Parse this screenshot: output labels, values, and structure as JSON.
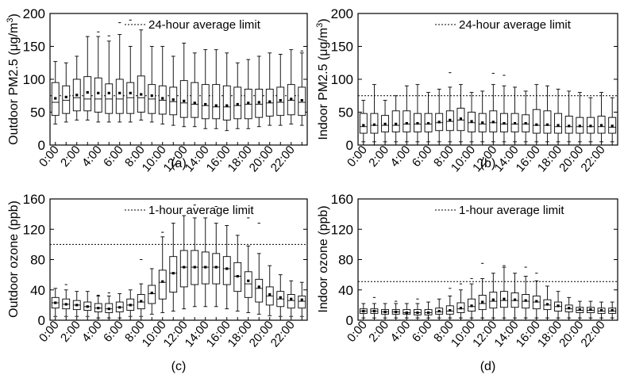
{
  "chart_data": [
    {
      "id": "a",
      "type": "box",
      "caption": "(a)",
      "ylabel": "Outdoor PM2.5 (μg/m³)",
      "ylabel_parts": [
        "Outdoor PM2.5 (μg/m",
        "3",
        ")"
      ],
      "ylim": [
        0,
        200
      ],
      "yticks": [
        0,
        50,
        100,
        150,
        200
      ],
      "limit": 75,
      "limit_label": "24-hour average limit",
      "xtick_labels": [
        "0:00",
        "2:00",
        "4:00",
        "6:00",
        "8:00",
        "10:00",
        "12:00",
        "14:00",
        "16:00",
        "18:00",
        "20:00",
        "22:00"
      ],
      "hours": [
        0,
        1,
        2,
        3,
        4,
        5,
        6,
        7,
        8,
        9,
        10,
        11,
        12,
        13,
        14,
        15,
        16,
        17,
        18,
        19,
        20,
        21,
        22,
        23
      ],
      "q1": [
        45,
        48,
        52,
        52,
        50,
        48,
        48,
        48,
        50,
        48,
        47,
        46,
        42,
        42,
        40,
        40,
        38,
        40,
        40,
        42,
        44,
        45,
        46,
        45
      ],
      "median": [
        65,
        68,
        72,
        70,
        70,
        70,
        70,
        72,
        72,
        70,
        68,
        66,
        64,
        62,
        60,
        58,
        58,
        60,
        62,
        62,
        64,
        65,
        68,
        65
      ],
      "q3": [
        95,
        90,
        100,
        104,
        102,
        93,
        100,
        95,
        105,
        92,
        90,
        88,
        98,
        95,
        92,
        92,
        90,
        88,
        85,
        85,
        85,
        88,
        92,
        88
      ],
      "wlo": [
        32,
        35,
        38,
        38,
        35,
        35,
        35,
        35,
        38,
        35,
        32,
        30,
        28,
        28,
        25,
        25,
        22,
        25,
        25,
        28,
        30,
        30,
        32,
        30
      ],
      "whi": [
        127,
        125,
        135,
        165,
        165,
        158,
        168,
        150,
        175,
        150,
        150,
        135,
        155,
        140,
        145,
        145,
        140,
        125,
        130,
        135,
        140,
        138,
        145,
        140
      ],
      "mean": [
        71,
        73,
        76,
        80,
        79,
        79,
        79,
        79,
        77,
        75,
        71,
        69,
        67,
        64,
        62,
        60,
        60,
        62,
        64,
        65,
        66,
        68,
        70,
        68
      ],
      "outliers": [
        [
          4,
          172
        ],
        [
          5,
          166
        ],
        [
          6,
          186
        ],
        [
          7,
          190
        ],
        [
          23,
          143
        ]
      ]
    },
    {
      "id": "b",
      "type": "box",
      "caption": "(b)",
      "ylabel": "Indoor PM2.5 (μg/m³)",
      "ylabel_parts": [
        "Indoor PM2.5 (μg/m",
        "3",
        ")"
      ],
      "ylim": [
        0,
        200
      ],
      "yticks": [
        0,
        50,
        100,
        150,
        200
      ],
      "limit": 75,
      "limit_label": "24-hour average limit",
      "xtick_labels": [
        "0:00",
        "2:00",
        "4:00",
        "6:00",
        "8:00",
        "10:00",
        "12:00",
        "14:00",
        "16:00",
        "18:00",
        "20:00",
        "22:00"
      ],
      "hours": [
        0,
        1,
        2,
        3,
        4,
        5,
        6,
        7,
        8,
        9,
        10,
        11,
        12,
        13,
        14,
        15,
        16,
        17,
        18,
        19,
        20,
        21,
        22,
        23
      ],
      "q1": [
        18,
        18,
        20,
        20,
        20,
        20,
        20,
        22,
        22,
        22,
        20,
        20,
        20,
        20,
        20,
        20,
        18,
        18,
        18,
        18,
        18,
        18,
        18,
        18
      ],
      "median": [
        28,
        30,
        30,
        30,
        32,
        32,
        32,
        34,
        36,
        38,
        34,
        32,
        34,
        32,
        32,
        32,
        30,
        30,
        28,
        28,
        28,
        28,
        28,
        27
      ],
      "q3": [
        48,
        48,
        45,
        52,
        52,
        48,
        48,
        48,
        52,
        56,
        50,
        48,
        52,
        48,
        48,
        46,
        54,
        52,
        48,
        44,
        42,
        42,
        44,
        42
      ],
      "wlo": [
        5,
        5,
        5,
        5,
        5,
        5,
        5,
        5,
        5,
        5,
        5,
        5,
        5,
        5,
        5,
        5,
        5,
        5,
        5,
        5,
        5,
        5,
        5,
        5
      ],
      "whi": [
        68,
        92,
        68,
        75,
        90,
        92,
        80,
        85,
        88,
        92,
        80,
        82,
        92,
        90,
        88,
        82,
        92,
        90,
        85,
        82,
        80,
        72,
        80,
        72
      ],
      "mean": [
        30,
        31,
        32,
        32,
        33,
        33,
        33,
        35,
        38,
        40,
        36,
        34,
        35,
        33,
        33,
        33,
        31,
        31,
        30,
        29,
        29,
        29,
        30,
        29
      ],
      "outliers": [
        [
          8,
          110
        ],
        [
          12,
          109
        ],
        [
          13,
          106
        ]
      ]
    },
    {
      "id": "c",
      "type": "box",
      "caption": "(c)",
      "ylabel": "Outdoor ozone (ppb)",
      "ylabel_parts": [
        "Outdoor ozone (ppb)"
      ],
      "ylim": [
        0,
        160
      ],
      "yticks": [
        0,
        40,
        80,
        120,
        160
      ],
      "limit": 100,
      "limit_label": "1-hour average limit",
      "xtick_labels": [
        "0:00",
        "2:00",
        "4:00",
        "6:00",
        "8:00",
        "10:00",
        "12:00",
        "14:00",
        "16:00",
        "18:00",
        "20:00",
        "22:00"
      ],
      "hours": [
        0,
        1,
        2,
        3,
        4,
        5,
        6,
        7,
        8,
        9,
        10,
        11,
        12,
        13,
        14,
        15,
        16,
        17,
        18,
        19,
        20,
        21,
        22,
        23
      ],
      "q1": [
        16,
        15,
        14,
        13,
        11,
        10,
        11,
        13,
        15,
        22,
        28,
        37,
        44,
        47,
        48,
        48,
        47,
        38,
        30,
        24,
        20,
        18,
        16,
        16
      ],
      "median": [
        23,
        21,
        20,
        18,
        16,
        15,
        17,
        20,
        24,
        35,
        50,
        62,
        70,
        70,
        70,
        70,
        68,
        58,
        48,
        42,
        32,
        28,
        26,
        25
      ],
      "q3": [
        30,
        28,
        26,
        24,
        22,
        22,
        24,
        28,
        34,
        46,
        66,
        84,
        92,
        92,
        90,
        88,
        84,
        76,
        64,
        54,
        44,
        38,
        34,
        32
      ],
      "wlo": [
        5,
        5,
        5,
        5,
        3,
        3,
        3,
        5,
        5,
        8,
        10,
        12,
        15,
        18,
        18,
        18,
        15,
        12,
        10,
        8,
        6,
        5,
        5,
        5
      ],
      "whi": [
        42,
        40,
        38,
        38,
        32,
        32,
        35,
        40,
        48,
        68,
        110,
        128,
        138,
        135,
        135,
        128,
        125,
        112,
        98,
        88,
        72,
        60,
        52,
        50
      ],
      "mean": [
        23,
        21,
        20,
        18,
        16,
        15,
        17,
        20,
        25,
        36,
        51,
        62,
        70,
        70,
        70,
        70,
        68,
        58,
        52,
        44,
        34,
        30,
        28,
        27
      ],
      "outliers": [
        [
          1,
          47
        ],
        [
          4,
          33
        ],
        [
          5,
          36
        ],
        [
          8,
          80
        ],
        [
          10,
          116
        ],
        [
          13,
          152
        ],
        [
          15,
          150
        ],
        [
          18,
          135
        ],
        [
          19,
          128
        ]
      ]
    },
    {
      "id": "d",
      "type": "box",
      "caption": "(d)",
      "ylabel": "Indoor ozone (ppb)",
      "ylabel_parts": [
        "Indoor ozone (ppb)"
      ],
      "ylim": [
        0,
        160
      ],
      "yticks": [
        0,
        40,
        80,
        120,
        160
      ],
      "limit": 51,
      "limit_label": "1-hour average limit",
      "xtick_labels": [
        "0:00",
        "2:00",
        "4:00",
        "6:00",
        "8:00",
        "10:00",
        "12:00",
        "14:00",
        "16:00",
        "18:00",
        "20:00",
        "22:00"
      ],
      "hours": [
        0,
        1,
        2,
        3,
        4,
        5,
        6,
        7,
        8,
        9,
        10,
        11,
        12,
        13,
        14,
        15,
        16,
        17,
        18,
        19,
        20,
        21,
        22,
        23
      ],
      "q1": [
        9,
        9,
        8,
        8,
        8,
        7,
        7,
        8,
        8,
        10,
        12,
        14,
        16,
        17,
        17,
        16,
        15,
        14,
        12,
        11,
        10,
        10,
        9,
        9
      ],
      "median": [
        12,
        12,
        11,
        11,
        10,
        10,
        10,
        11,
        12,
        15,
        18,
        22,
        25,
        26,
        26,
        25,
        24,
        20,
        18,
        15,
        13,
        13,
        12,
        12
      ],
      "q3": [
        15,
        15,
        14,
        14,
        14,
        14,
        14,
        16,
        19,
        23,
        28,
        33,
        37,
        38,
        36,
        34,
        32,
        27,
        24,
        20,
        17,
        17,
        16,
        16
      ],
      "wlo": [
        3,
        3,
        3,
        3,
        3,
        3,
        3,
        3,
        3,
        3,
        3,
        3,
        3,
        3,
        3,
        3,
        3,
        3,
        3,
        3,
        3,
        3,
        3,
        3
      ],
      "whi": [
        22,
        22,
        22,
        22,
        22,
        22,
        24,
        28,
        32,
        40,
        48,
        55,
        62,
        70,
        62,
        58,
        52,
        45,
        38,
        30,
        25,
        25,
        24,
        24
      ],
      "mean": [
        12,
        12,
        11,
        11,
        10,
        10,
        10,
        12,
        13,
        16,
        19,
        24,
        27,
        28,
        27,
        26,
        25,
        21,
        19,
        16,
        14,
        14,
        13,
        13
      ],
      "outliers": [
        [
          1,
          30
        ],
        [
          3,
          25
        ],
        [
          5,
          28
        ],
        [
          8,
          42
        ],
        [
          9,
          48
        ],
        [
          10,
          55
        ],
        [
          11,
          75
        ],
        [
          13,
          72
        ],
        [
          15,
          70
        ],
        [
          16,
          62
        ]
      ]
    }
  ]
}
